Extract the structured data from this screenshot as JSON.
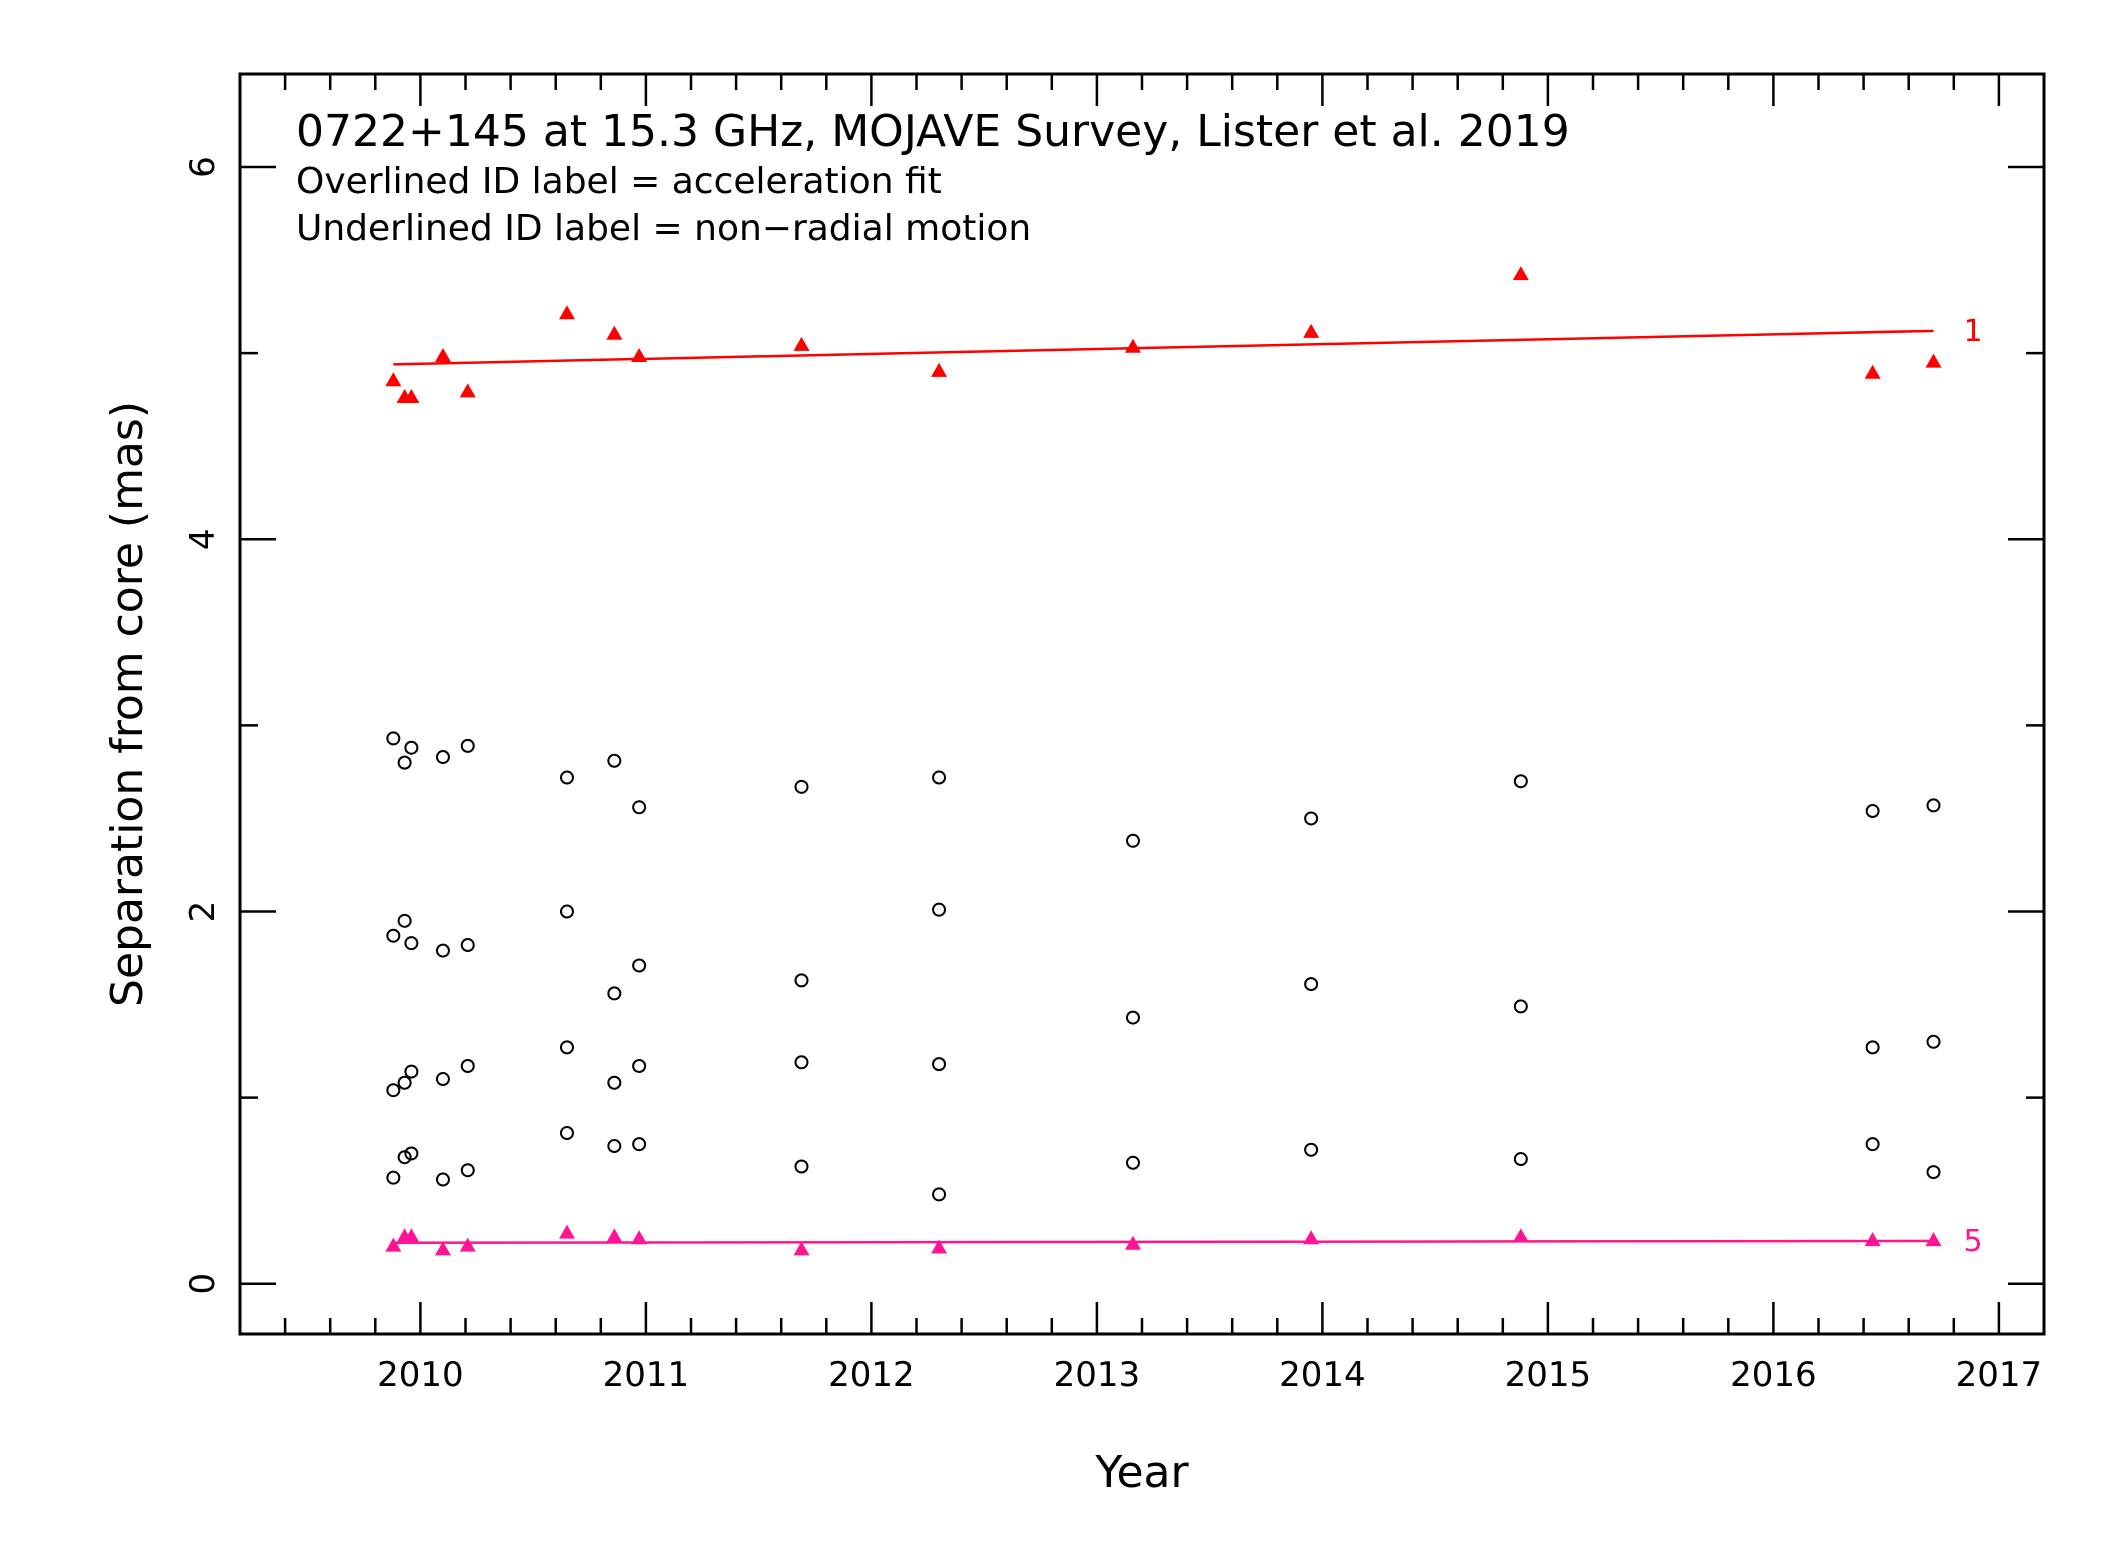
{
  "chart_data": {
    "type": "scatter",
    "annotations": [
      "0722+145 at 15.3 GHz, MOJAVE Survey, Lister et al. 2019",
      "Overlined ID label = acceleration fit",
      "Underlined ID label = non−radial motion"
    ],
    "xlabel": "Year",
    "ylabel": "Separation from core (mas)",
    "xlim": [
      2009.2,
      2017.2
    ],
    "ylim": [
      -0.27,
      6.5
    ],
    "x_ticks": [
      "2010",
      "2011",
      "2012",
      "2013",
      "2014",
      "2015",
      "2016",
      "2017"
    ],
    "y_ticks": [
      "0",
      "2",
      "4",
      "6"
    ],
    "grid": false,
    "legend": "none",
    "series": [
      {
        "name": "1",
        "marker": "filled-triangle",
        "color": "#ff0000",
        "x": [
          2009.88,
          2009.93,
          2009.96,
          2010.1,
          2010.21,
          2010.65,
          2010.86,
          2010.97,
          2011.69,
          2012.3,
          2013.16,
          2013.95,
          2014.88,
          2016.44,
          2016.71
        ],
        "y": [
          4.86,
          4.77,
          4.77,
          4.99,
          4.8,
          5.22,
          5.11,
          4.99,
          5.05,
          4.91,
          5.04,
          5.12,
          5.43,
          4.9,
          4.96
        ],
        "fit": {
          "x": [
            2009.88,
            2016.71
          ],
          "y": [
            4.94,
            5.12
          ],
          "label": "1"
        }
      },
      {
        "name": "5",
        "marker": "filled-triangle",
        "color": "#ff1493",
        "x": [
          2009.88,
          2009.93,
          2009.96,
          2010.1,
          2010.21,
          2010.65,
          2010.86,
          2010.97,
          2011.69,
          2012.3,
          2013.16,
          2013.95,
          2014.88,
          2016.44,
          2016.71
        ],
        "y": [
          0.21,
          0.26,
          0.26,
          0.19,
          0.21,
          0.28,
          0.26,
          0.25,
          0.19,
          0.2,
          0.22,
          0.25,
          0.26,
          0.24,
          0.24
        ],
        "fit": {
          "x": [
            2009.88,
            2016.71
          ],
          "y": [
            0.22,
            0.23
          ],
          "label": "5"
        }
      },
      {
        "marker": "open-circle",
        "color": "#000000",
        "x": [
          2009.88,
          2009.93,
          2009.96,
          2010.1,
          2010.21,
          2010.65,
          2010.86,
          2010.97,
          2011.69,
          2012.3,
          2013.16,
          2013.95,
          2014.88,
          2016.44,
          2016.71
        ],
        "y": [
          2.93,
          2.8,
          2.88,
          2.83,
          2.89,
          2.72,
          2.81,
          2.56,
          2.67,
          2.72,
          2.38,
          2.5,
          2.7,
          2.54,
          2.57
        ]
      },
      {
        "marker": "open-circle",
        "color": "#000000",
        "x": [
          2009.88,
          2009.93,
          2009.96,
          2010.1,
          2010.21,
          2010.65,
          2010.86,
          2010.97,
          2011.69,
          2012.3,
          2013.16,
          2013.95,
          2014.88,
          2016.44,
          2016.71
        ],
        "y": [
          1.87,
          1.95,
          1.83,
          1.79,
          1.82,
          2.0,
          1.56,
          1.71,
          1.63,
          2.01,
          1.43,
          1.61,
          1.49,
          1.27,
          1.3
        ]
      },
      {
        "marker": "open-circle",
        "color": "#000000",
        "x": [
          2009.88,
          2009.93,
          2009.96,
          2010.1,
          2010.21,
          2010.65,
          2010.86,
          2010.97,
          2011.69,
          2012.3
        ],
        "y": [
          1.04,
          1.08,
          1.14,
          1.1,
          1.17,
          1.27,
          1.08,
          1.17,
          1.19,
          1.18
        ]
      },
      {
        "marker": "open-circle",
        "color": "#000000",
        "x": [
          2009.88,
          2009.93,
          2009.96,
          2010.1,
          2010.21,
          2010.65,
          2010.86,
          2010.97,
          2011.69,
          2012.3,
          2013.16,
          2013.95,
          2014.88,
          2016.44,
          2016.71
        ],
        "y": [
          0.57,
          0.68,
          0.7,
          0.56,
          0.61,
          0.81,
          0.74,
          0.75,
          0.63,
          0.48,
          0.65,
          0.72,
          0.67,
          0.75,
          0.6
        ]
      }
    ]
  }
}
